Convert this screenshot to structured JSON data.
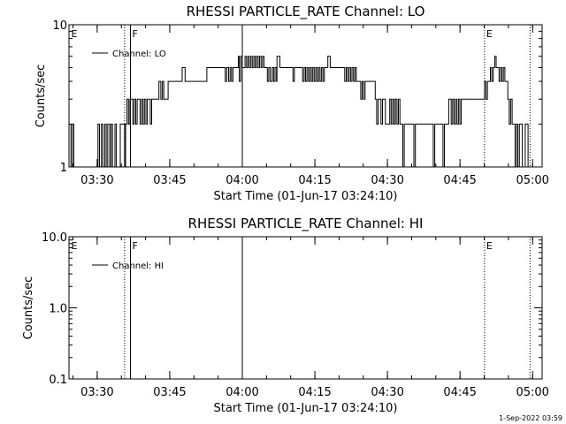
{
  "footer_date": "1-Sep-2022 03:59",
  "chart_data": [
    {
      "type": "line",
      "title": "RHESSI PARTICLE_RATE Channel: LO",
      "xlabel": "Start Time (01-Jun-17 03:24:10)",
      "ylabel": "Counts/sec",
      "x_unit": "minutes after 03:24:10",
      "xlim": [
        0,
        97.8
      ],
      "ylim": [
        1,
        10
      ],
      "yscale": "log",
      "x_ticks": [
        {
          "x": 5.83,
          "label": "03:30"
        },
        {
          "x": 20.83,
          "label": "03:45"
        },
        {
          "x": 35.83,
          "label": "04:00"
        },
        {
          "x": 50.83,
          "label": "04:15"
        },
        {
          "x": 65.83,
          "label": "04:30"
        },
        {
          "x": 80.83,
          "label": "04:45"
        },
        {
          "x": 95.83,
          "label": "05:00"
        }
      ],
      "y_ticks": [
        {
          "y": 1,
          "label": "1"
        },
        {
          "y": 10,
          "label": "10"
        }
      ],
      "markers": [
        {
          "x": 11.5,
          "label": "F",
          "style": "dotted",
          "label_visible": false
        },
        {
          "x": 12.7,
          "label": "F",
          "style": "solid",
          "label_visible": true
        },
        {
          "x": 35.83,
          "label": "",
          "style": "solid",
          "label_visible": false
        },
        {
          "x": 85.9,
          "label": "E",
          "style": "dotted",
          "label_visible": true
        },
        {
          "x": 95.3,
          "label": "E",
          "style": "dotted",
          "label_visible": false
        },
        {
          "x": 0.1,
          "label": "E",
          "style": "none",
          "label_visible": true
        }
      ],
      "legend": {
        "position": "top-left",
        "entries": [
          "Channel: LO"
        ]
      },
      "grid": false,
      "series": [
        {
          "name": "Channel: LO",
          "values": [
            [
              0,
              2
            ],
            [
              0.4,
              1
            ],
            [
              0.7,
              2
            ],
            [
              1,
              1
            ],
            [
              1.5,
              1
            ],
            [
              2,
              1
            ],
            [
              3,
              1
            ],
            [
              4,
              1
            ],
            [
              5,
              1
            ],
            [
              6,
              2
            ],
            [
              6.3,
              1
            ],
            [
              6.7,
              2
            ],
            [
              7,
              1
            ],
            [
              7.4,
              2
            ],
            [
              7.7,
              1
            ],
            [
              8,
              2
            ],
            [
              8.4,
              1
            ],
            [
              8.7,
              2
            ],
            [
              9,
              1
            ],
            [
              9.5,
              2
            ],
            [
              9.8,
              1
            ],
            [
              10.3,
              1
            ],
            [
              10.6,
              2
            ],
            [
              11,
              2
            ],
            [
              11.5,
              1
            ],
            [
              11.7,
              2
            ],
            [
              12,
              3
            ],
            [
              12.3,
              2
            ],
            [
              12.6,
              3
            ],
            [
              12.9,
              3
            ],
            [
              13.2,
              2
            ],
            [
              13.5,
              3
            ],
            [
              13.8,
              2
            ],
            [
              14.1,
              3
            ],
            [
              14.4,
              3
            ],
            [
              14.7,
              2
            ],
            [
              15,
              3
            ],
            [
              15.3,
              2
            ],
            [
              15.6,
              3
            ],
            [
              15.9,
              2
            ],
            [
              16.2,
              3
            ],
            [
              16.5,
              3
            ],
            [
              16.8,
              2
            ],
            [
              17.1,
              3
            ],
            [
              17.4,
              3
            ],
            [
              18,
              3
            ],
            [
              18.3,
              3
            ],
            [
              18.6,
              4
            ],
            [
              19,
              3
            ],
            [
              19.3,
              4
            ],
            [
              19.6,
              3
            ],
            [
              20,
              3
            ],
            [
              20.5,
              4
            ],
            [
              21,
              4
            ],
            [
              22,
              4
            ],
            [
              23,
              4
            ],
            [
              23.4,
              5
            ],
            [
              24,
              4
            ],
            [
              25,
              4
            ],
            [
              26,
              4
            ],
            [
              27,
              4
            ],
            [
              28,
              4
            ],
            [
              28.5,
              5
            ],
            [
              29,
              5
            ],
            [
              30,
              5
            ],
            [
              31,
              5
            ],
            [
              32,
              5
            ],
            [
              32.3,
              4
            ],
            [
              32.6,
              5
            ],
            [
              33,
              4
            ],
            [
              33.3,
              5
            ],
            [
              33.6,
              4
            ],
            [
              33.9,
              5
            ],
            [
              34.2,
              5
            ],
            [
              34.5,
              5
            ],
            [
              35,
              6
            ],
            [
              35.2,
              4
            ],
            [
              35.5,
              6
            ],
            [
              35.8,
              5
            ],
            [
              36.1,
              5
            ],
            [
              36.4,
              6
            ],
            [
              36.7,
              5
            ],
            [
              37,
              6
            ],
            [
              37.3,
              5
            ],
            [
              37.6,
              6
            ],
            [
              37.9,
              5
            ],
            [
              38.2,
              6
            ],
            [
              38.5,
              5
            ],
            [
              38.8,
              6
            ],
            [
              39.1,
              5
            ],
            [
              39.4,
              6
            ],
            [
              39.7,
              5
            ],
            [
              40,
              6
            ],
            [
              40.3,
              5
            ],
            [
              40.6,
              5
            ],
            [
              41,
              4
            ],
            [
              41.3,
              5
            ],
            [
              41.6,
              4
            ],
            [
              42,
              5
            ],
            [
              42.3,
              4
            ],
            [
              42.6,
              5
            ],
            [
              42.9,
              4
            ],
            [
              43,
              6
            ],
            [
              43.3,
              6
            ],
            [
              43.6,
              5
            ],
            [
              45,
              5
            ],
            [
              46,
              5
            ],
            [
              46.3,
              4
            ],
            [
              46.6,
              5
            ],
            [
              47,
              5
            ],
            [
              48,
              5
            ],
            [
              48.3,
              4
            ],
            [
              48.6,
              5
            ],
            [
              48.9,
              4
            ],
            [
              49.2,
              5
            ],
            [
              49.5,
              4
            ],
            [
              49.8,
              5
            ],
            [
              50.1,
              4
            ],
            [
              50.4,
              5
            ],
            [
              50.7,
              4
            ],
            [
              51,
              5
            ],
            [
              51.3,
              4
            ],
            [
              51.6,
              5
            ],
            [
              51.9,
              4
            ],
            [
              52.2,
              5
            ],
            [
              52.5,
              4
            ],
            [
              52.8,
              5
            ],
            [
              53.1,
              5
            ],
            [
              53.5,
              6
            ],
            [
              54,
              5
            ],
            [
              54.5,
              5
            ],
            [
              55,
              5
            ],
            [
              56,
              5
            ],
            [
              57,
              4
            ],
            [
              57.3,
              5
            ],
            [
              57.6,
              4
            ],
            [
              57.9,
              5
            ],
            [
              58.2,
              4
            ],
            [
              58.5,
              5
            ],
            [
              58.8,
              4
            ],
            [
              59.1,
              5
            ],
            [
              59.4,
              4
            ],
            [
              59.7,
              4
            ],
            [
              60,
              4
            ],
            [
              60.3,
              3
            ],
            [
              60.6,
              4
            ],
            [
              60.9,
              3
            ],
            [
              61.2,
              4
            ],
            [
              61.5,
              4
            ],
            [
              62,
              4
            ],
            [
              63,
              4
            ],
            [
              63.3,
              3
            ],
            [
              63.6,
              2
            ],
            [
              63.9,
              3
            ],
            [
              64.2,
              3
            ],
            [
              64.5,
              2
            ],
            [
              64.8,
              3
            ],
            [
              65.1,
              3
            ],
            [
              65.4,
              2
            ],
            [
              65.7,
              2
            ],
            [
              66,
              2
            ],
            [
              66.3,
              3
            ],
            [
              66.6,
              2
            ],
            [
              66.9,
              3
            ],
            [
              67.2,
              2
            ],
            [
              67.5,
              3
            ],
            [
              67.8,
              2
            ],
            [
              68.1,
              3
            ],
            [
              68.4,
              2
            ],
            [
              68.7,
              2
            ],
            [
              69,
              1
            ],
            [
              69.3,
              2
            ],
            [
              70,
              2
            ],
            [
              71,
              2
            ],
            [
              71.3,
              1
            ],
            [
              71.6,
              2
            ],
            [
              72,
              2
            ],
            [
              73,
              2
            ],
            [
              74,
              2
            ],
            [
              75,
              2
            ],
            [
              75.3,
              1
            ],
            [
              75.6,
              2
            ],
            [
              76,
              2
            ],
            [
              77,
              2
            ],
            [
              77.3,
              1
            ],
            [
              77.6,
              2
            ],
            [
              78,
              2
            ],
            [
              78.5,
              3
            ],
            [
              79,
              2
            ],
            [
              79.3,
              3
            ],
            [
              79.6,
              2
            ],
            [
              79.9,
              3
            ],
            [
              80.2,
              2
            ],
            [
              80.5,
              3
            ],
            [
              80.8,
              2
            ],
            [
              81.1,
              3
            ],
            [
              81.4,
              3
            ],
            [
              82,
              3
            ],
            [
              83,
              3
            ],
            [
              84,
              3
            ],
            [
              85,
              3
            ],
            [
              85.3,
              3
            ],
            [
              85.9,
              4
            ],
            [
              86.2,
              3
            ],
            [
              86.5,
              4
            ],
            [
              86.8,
              4
            ],
            [
              87.1,
              5
            ],
            [
              87.4,
              4
            ],
            [
              87.7,
              5
            ],
            [
              88,
              6
            ],
            [
              88.3,
              5
            ],
            [
              88.6,
              5
            ],
            [
              88.9,
              4
            ],
            [
              89.2,
              5
            ],
            [
              89.5,
              4
            ],
            [
              89.8,
              5
            ],
            [
              90.1,
              4
            ],
            [
              90.4,
              4
            ],
            [
              90.7,
              3
            ],
            [
              91,
              2
            ],
            [
              91.3,
              3
            ],
            [
              91.6,
              2
            ],
            [
              91.9,
              2
            ],
            [
              92.2,
              1
            ],
            [
              92.5,
              2
            ],
            [
              92.8,
              1
            ],
            [
              93.1,
              2
            ],
            [
              93.4,
              2
            ],
            [
              93.7,
              1
            ],
            [
              94,
              1
            ],
            [
              94.3,
              2
            ],
            [
              94.6,
              2
            ],
            [
              94.9,
              1
            ],
            [
              95.2,
              1
            ]
          ]
        }
      ]
    },
    {
      "type": "line",
      "title": "RHESSI PARTICLE_RATE Channel: HI",
      "xlabel": "Start Time (01-Jun-17 03:24:10)",
      "ylabel": "Counts/sec",
      "x_unit": "minutes after 03:24:10",
      "xlim": [
        0,
        97.8
      ],
      "ylim": [
        0.1,
        10
      ],
      "yscale": "log",
      "x_ticks": [
        {
          "x": 5.83,
          "label": "03:30"
        },
        {
          "x": 20.83,
          "label": "03:45"
        },
        {
          "x": 35.83,
          "label": "04:00"
        },
        {
          "x": 50.83,
          "label": "04:15"
        },
        {
          "x": 65.83,
          "label": "04:30"
        },
        {
          "x": 80.83,
          "label": "04:45"
        },
        {
          "x": 95.83,
          "label": "05:00"
        }
      ],
      "y_ticks": [
        {
          "y": 0.1,
          "label": "0.1"
        },
        {
          "y": 1,
          "label": "1.0"
        },
        {
          "y": 10,
          "label": "10.0"
        }
      ],
      "markers": [
        {
          "x": 11.5,
          "label": "F",
          "style": "dotted",
          "label_visible": false
        },
        {
          "x": 12.7,
          "label": "F",
          "style": "solid",
          "label_visible": true
        },
        {
          "x": 35.83,
          "label": "",
          "style": "solid",
          "label_visible": false
        },
        {
          "x": 85.9,
          "label": "E",
          "style": "dotted",
          "label_visible": true
        },
        {
          "x": 95.3,
          "label": "E",
          "style": "dotted",
          "label_visible": false
        },
        {
          "x": 0.1,
          "label": "E",
          "style": "none",
          "label_visible": true
        }
      ],
      "legend": {
        "position": "top-left",
        "entries": [
          "Channel: HI"
        ]
      },
      "grid": false,
      "series": [
        {
          "name": "Channel: HI",
          "values": []
        }
      ]
    }
  ]
}
